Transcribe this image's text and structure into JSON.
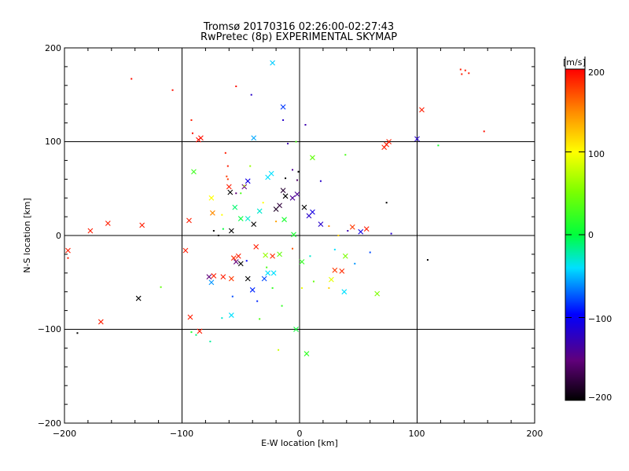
{
  "chart_data": {
    "type": "scatter",
    "title": "Tromsø 20170316 02:26:00-02:27:43",
    "subtitle": "RwPretec (8p) EXPERIMENTAL SKYMAP",
    "xlabel": "E-W location [km]",
    "ylabel": "N-S location [km]",
    "xlim": [
      -200,
      200
    ],
    "ylim": [
      -200,
      200
    ],
    "xticks": [
      "−200",
      "−100",
      "0",
      "100",
      "200"
    ],
    "yticks": [
      "−200",
      "−100",
      "0",
      "100",
      "200"
    ],
    "grid": true,
    "colorbar": {
      "label": "[m/s]",
      "range": [
        -200,
        200
      ],
      "ticks": [
        "200",
        "100",
        "0",
        "−100",
        "−200"
      ],
      "tick_values": [
        200,
        100,
        0,
        -100,
        -200
      ]
    },
    "series": [
      {
        "marker": "x",
        "points": [
          [
            -23,
            184,
            -45
          ],
          [
            -14,
            137,
            -85
          ],
          [
            -39,
            104,
            -55
          ],
          [
            -84,
            104,
            195
          ],
          [
            -86,
            102,
            195
          ],
          [
            11,
            83,
            40
          ],
          [
            -90,
            68,
            25
          ],
          [
            -24,
            66,
            -40
          ],
          [
            -27,
            62,
            -40
          ],
          [
            -44,
            58,
            -110
          ],
          [
            -59,
            46,
            -200
          ],
          [
            -47,
            52,
            -150
          ],
          [
            -60,
            52,
            190
          ],
          [
            -94,
            16,
            190
          ],
          [
            -75,
            40,
            100
          ],
          [
            -55,
            30,
            -10
          ],
          [
            -74,
            24,
            150
          ],
          [
            -44,
            18,
            -30
          ],
          [
            -39,
            12,
            -200
          ],
          [
            -34,
            26,
            -30
          ],
          [
            -178,
            5,
            190
          ],
          [
            -163,
            13,
            190
          ],
          [
            -134,
            11,
            190
          ],
          [
            -97,
            -16,
            190
          ],
          [
            -197,
            -16,
            190
          ],
          [
            -52,
            -22,
            190
          ],
          [
            -56,
            -24,
            185
          ],
          [
            -29,
            -21,
            60
          ],
          [
            -37,
            -12,
            190
          ],
          [
            -23,
            -22,
            185
          ],
          [
            -17,
            -20,
            40
          ],
          [
            -58,
            5,
            -200
          ],
          [
            -65,
            -44,
            190
          ],
          [
            -58,
            -46,
            180
          ],
          [
            -73,
            -43,
            190
          ],
          [
            -77,
            -44,
            -150
          ],
          [
            -75,
            -50,
            -60
          ],
          [
            -54,
            -28,
            -150
          ],
          [
            -40,
            -58,
            -90
          ],
          [
            -50,
            -30,
            -200
          ],
          [
            -44,
            -46,
            -200
          ],
          [
            -30,
            -46,
            -80
          ],
          [
            -22,
            -40,
            -40
          ],
          [
            -27,
            -40,
            -40
          ],
          [
            -137,
            -67,
            -200
          ],
          [
            -169,
            -92,
            190
          ],
          [
            -93,
            -87,
            190
          ],
          [
            -85,
            -102,
            190
          ],
          [
            -58,
            -85,
            -40
          ],
          [
            -3,
            -100,
            5
          ],
          [
            6,
            -126,
            20
          ],
          [
            -12,
            42,
            -200
          ],
          [
            -14,
            48,
            -180
          ],
          [
            -17,
            32,
            -175
          ],
          [
            -20,
            28,
            -185
          ],
          [
            -6,
            40,
            -140
          ],
          [
            -2,
            44,
            -140
          ],
          [
            11,
            25,
            -110
          ],
          [
            8,
            21,
            -120
          ],
          [
            18,
            12,
            -120
          ],
          [
            4,
            30,
            -200
          ],
          [
            45,
            9,
            180
          ],
          [
            57,
            7,
            190
          ],
          [
            52,
            4,
            -110
          ],
          [
            39,
            -22,
            50
          ],
          [
            38,
            -60,
            -40
          ],
          [
            66,
            -62,
            50
          ],
          [
            27,
            -47,
            90
          ],
          [
            30,
            -37,
            180
          ],
          [
            36,
            -38,
            185
          ],
          [
            104,
            134,
            190
          ],
          [
            100,
            103,
            -120
          ],
          [
            72,
            94,
            190
          ],
          [
            74,
            97,
            190
          ],
          [
            76,
            100,
            190
          ],
          [
            -5,
            1,
            10
          ],
          [
            -13,
            17,
            10
          ],
          [
            2,
            -28,
            20
          ],
          [
            -50,
            18,
            0
          ]
        ]
      },
      {
        "marker": "dot",
        "points": [
          [
            -143,
            167,
            195
          ],
          [
            -108,
            155,
            195
          ],
          [
            -54,
            159,
            195
          ],
          [
            -41,
            150,
            -120
          ],
          [
            -14,
            123,
            -120
          ],
          [
            5,
            118,
            -130
          ],
          [
            -92,
            123,
            190
          ],
          [
            -91,
            109,
            195
          ],
          [
            137,
            177,
            190
          ],
          [
            138,
            172,
            190
          ],
          [
            141,
            176,
            190
          ],
          [
            144,
            173,
            190
          ],
          [
            157,
            111,
            195
          ],
          [
            118,
            96,
            10
          ],
          [
            -63,
            88,
            190
          ],
          [
            -61,
            74,
            190
          ],
          [
            -10,
            98,
            -130
          ],
          [
            -3,
            100,
            30
          ],
          [
            39,
            86,
            30
          ],
          [
            -42,
            74,
            60
          ],
          [
            -47,
            53,
            70
          ],
          [
            -61,
            60,
            180
          ],
          [
            -62,
            63,
            180
          ],
          [
            -50,
            45,
            30
          ],
          [
            -54,
            45,
            -150
          ],
          [
            -12,
            61,
            -200
          ],
          [
            -1,
            68,
            -200
          ],
          [
            74,
            35,
            -200
          ],
          [
            109,
            -26,
            -200
          ],
          [
            -189,
            -104,
            -200
          ],
          [
            -197,
            -24,
            190
          ],
          [
            -118,
            -55,
            40
          ],
          [
            -92,
            -103,
            10
          ],
          [
            -88,
            -106,
            -10
          ],
          [
            -76,
            -113,
            -20
          ],
          [
            -66,
            -88,
            -30
          ],
          [
            -34,
            -89,
            30
          ],
          [
            -15,
            -75,
            20
          ],
          [
            -18,
            -122,
            80
          ],
          [
            -45,
            -27,
            -100
          ],
          [
            -57,
            -65,
            -80
          ],
          [
            -36,
            -70,
            -90
          ],
          [
            25,
            -56,
            120
          ],
          [
            41,
            5,
            -130
          ],
          [
            78,
            2,
            -120
          ],
          [
            18,
            58,
            -120
          ],
          [
            -6,
            70,
            -140
          ],
          [
            -2,
            59,
            -160
          ],
          [
            -20,
            15,
            140
          ],
          [
            -31,
            35,
            100
          ],
          [
            -65,
            7,
            0
          ],
          [
            -73,
            5,
            -200
          ],
          [
            -69,
            0,
            -200
          ],
          [
            -6,
            -14,
            170
          ],
          [
            9,
            -22,
            -30
          ],
          [
            30,
            -15,
            -40
          ],
          [
            47,
            -30,
            -60
          ],
          [
            60,
            -18,
            -80
          ],
          [
            25,
            10,
            150
          ],
          [
            33,
            0,
            120
          ],
          [
            -28,
            -34,
            30
          ],
          [
            -23,
            -56,
            20
          ],
          [
            2,
            -56,
            90
          ],
          [
            12,
            -49,
            40
          ],
          [
            -66,
            22,
            100
          ]
        ]
      }
    ]
  }
}
